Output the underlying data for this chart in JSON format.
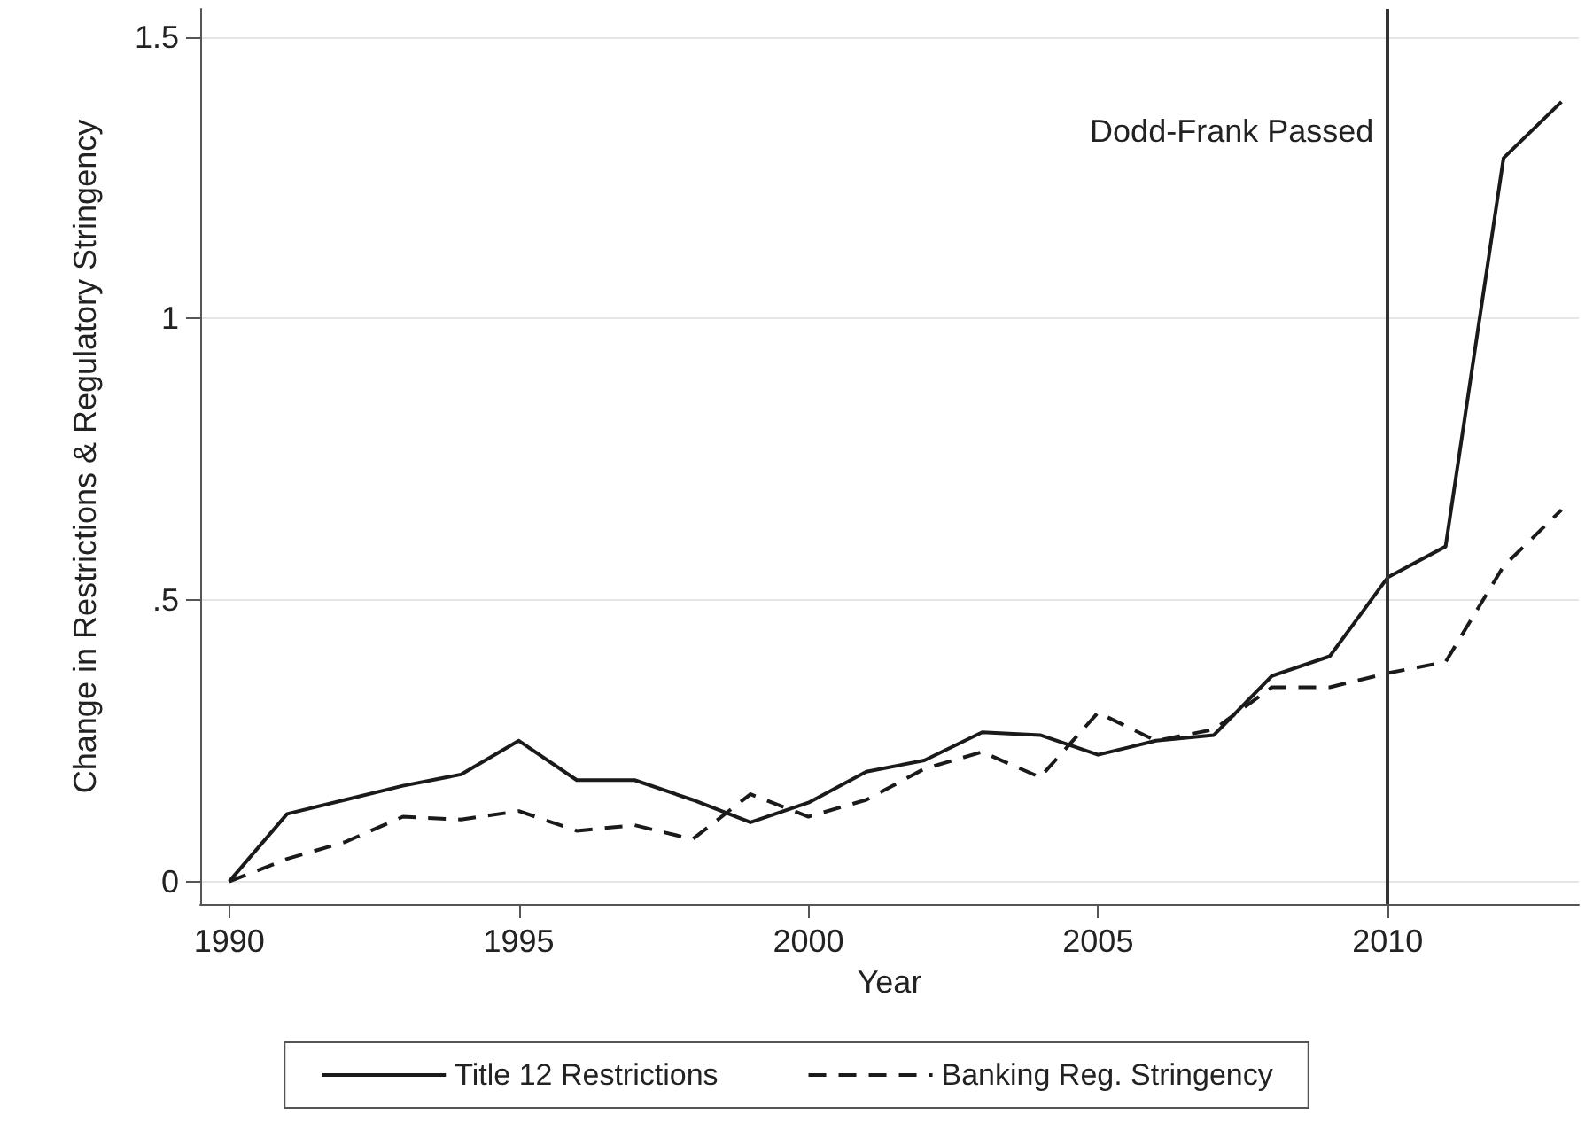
{
  "chart_data": {
    "type": "line",
    "xlabel": "Year",
    "ylabel": "Change in Restrictions & Regulatory Stringency",
    "x": [
      1990,
      1991,
      1992,
      1993,
      1994,
      1995,
      1996,
      1997,
      1998,
      1999,
      2000,
      2001,
      2002,
      2003,
      2004,
      2005,
      2006,
      2007,
      2008,
      2009,
      2010,
      2011,
      2012,
      2013
    ],
    "series": [
      {
        "name": "Title 12 Restrictions",
        "color": "#1a1a1a",
        "line_style": "solid",
        "values": [
          0,
          0.12,
          0.145,
          0.17,
          0.19,
          0.25,
          0.18,
          0.18,
          0.145,
          0.105,
          0.14,
          0.195,
          0.215,
          0.265,
          0.26,
          0.225,
          0.25,
          0.26,
          0.365,
          0.4,
          0.54,
          0.595,
          1.285,
          1.385
        ]
      },
      {
        "name": "Banking Reg. Stringency",
        "color": "#1a1a1a",
        "line_style": "dashed",
        "values": [
          0,
          0.04,
          0.07,
          0.115,
          0.11,
          0.125,
          0.09,
          0.1,
          0.075,
          0.155,
          0.115,
          0.145,
          0.2,
          0.23,
          0.185,
          0.3,
          0.25,
          0.27,
          0.345,
          0.345,
          0.37,
          0.39,
          0.56,
          0.66
        ]
      }
    ],
    "xlim": [
      1989.5,
      2013.3
    ],
    "xticks": [
      1990,
      1995,
      2000,
      2005,
      2010
    ],
    "ylim": [
      -0.04,
      1.55
    ],
    "yticks": [
      0,
      {
        "value": 0.5,
        "label": ".5"
      },
      1,
      1.5
    ],
    "ref_lines": [
      {
        "axis": "x",
        "value": 2010,
        "label": "Dodd-Frank Passed",
        "color": "#333333"
      }
    ],
    "grid": "y",
    "legend": "bottom",
    "marker": "none"
  }
}
